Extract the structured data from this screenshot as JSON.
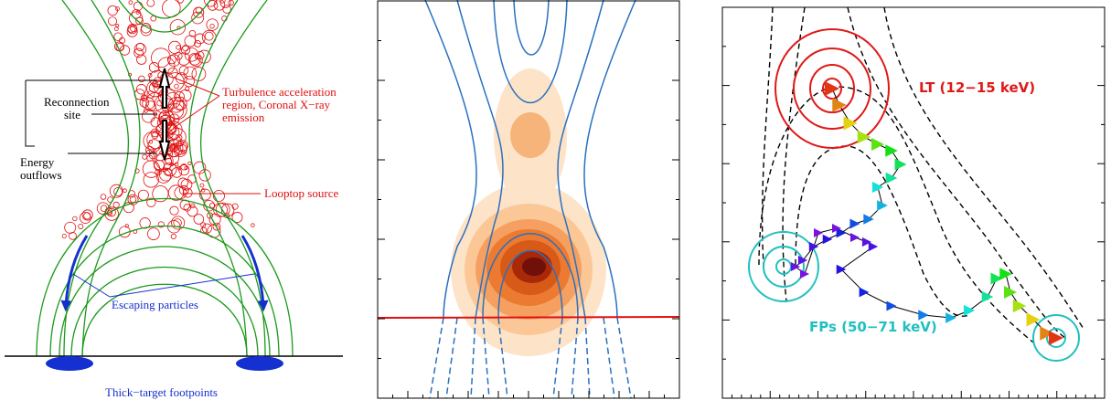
{
  "panel1": {
    "labels": {
      "reconnection_site": [
        "Reconnection",
        "site"
      ],
      "energy_outflows": [
        "Energy",
        "outflows"
      ],
      "turbulence": [
        "Turbulence acceleration",
        "region, Coronal X−ray",
        "emission"
      ],
      "looptop": "Looptop source",
      "escaping": "Escaping particles",
      "footpoints": "Thick−target footpoints"
    }
  },
  "panel3": {
    "labels": {
      "lt": "LT (12−15 keV)",
      "fps": "FPs (50−71 keV)"
    }
  }
}
